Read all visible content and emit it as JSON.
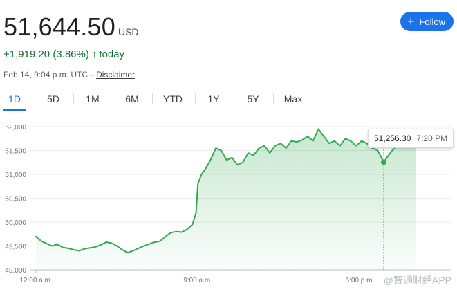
{
  "quote": {
    "price": "51,644.50",
    "currency": "USD",
    "change": "+1,919.20 (3.86%)",
    "change_arrow": "↑",
    "change_period": "today",
    "timestamp": "Feb 14, 9:04 p.m. UTC",
    "separator": "·",
    "disclaimer": "Disclaimer",
    "follow_label": "Follow",
    "follow_icon": "+"
  },
  "colors": {
    "up": "#137333",
    "line": "#34a853",
    "accent": "#1a73e8"
  },
  "tabs": [
    {
      "label": "1D",
      "active": true
    },
    {
      "label": "5D",
      "active": false
    },
    {
      "label": "1M",
      "active": false
    },
    {
      "label": "6M",
      "active": false
    },
    {
      "label": "YTD",
      "active": false
    },
    {
      "label": "1Y",
      "active": false
    },
    {
      "label": "5Y",
      "active": false
    },
    {
      "label": "Max",
      "active": false
    }
  ],
  "tooltip": {
    "value": "51,256.30",
    "time": "7:20 PM"
  },
  "watermark": "@智通财经APP",
  "chart_data": {
    "type": "area",
    "y_ticks": [
      "52,000",
      "51,500",
      "51,000",
      "50,500",
      "50,000",
      "49,500",
      "49,000"
    ],
    "x_ticks": [
      "12:00 a.m.",
      "9:00 a.m.",
      "6:00 p.m."
    ],
    "ylim": [
      49000,
      52000
    ],
    "x_range_hours": [
      0,
      21.1
    ],
    "hover_point": {
      "x_hours": 19.33,
      "y": 51256.3
    },
    "series": [
      {
        "x": [
          0.0,
          0.3,
          0.6,
          0.9,
          1.2,
          1.5,
          1.8,
          2.1,
          2.4,
          2.7,
          3.0,
          3.3,
          3.6,
          3.9,
          4.2,
          4.5,
          4.8,
          5.1,
          5.4,
          5.7,
          6.0,
          6.3,
          6.6,
          6.9,
          7.2,
          7.5,
          7.8,
          8.1,
          8.4,
          8.7,
          8.9,
          9.0,
          9.2,
          9.4,
          9.7,
          10.0,
          10.3,
          10.6,
          10.9,
          11.2,
          11.5,
          11.8,
          12.1,
          12.4,
          12.7,
          13.0,
          13.3,
          13.6,
          13.9,
          14.2,
          14.5,
          14.8,
          15.1,
          15.4,
          15.7,
          16.0,
          16.3,
          16.6,
          16.9,
          17.2,
          17.5,
          17.8,
          18.1,
          18.4,
          18.7,
          19.0,
          19.33,
          19.6,
          19.8,
          20.1,
          20.4,
          20.7,
          21.1
        ],
        "y": [
          49700,
          49600,
          49550,
          49500,
          49530,
          49470,
          49450,
          49420,
          49400,
          49440,
          49460,
          49480,
          49520,
          49580,
          49560,
          49500,
          49420,
          49360,
          49400,
          49450,
          49500,
          49540,
          49580,
          49600,
          49700,
          49780,
          49800,
          49790,
          49850,
          49950,
          50200,
          50800,
          51000,
          51100,
          51300,
          51550,
          51500,
          51300,
          51350,
          51200,
          51250,
          51450,
          51400,
          51550,
          51600,
          51450,
          51600,
          51650,
          51550,
          51700,
          51680,
          51720,
          51800,
          51700,
          51950,
          51800,
          51650,
          51700,
          51600,
          51750,
          51700,
          51600,
          51700,
          51650,
          51550,
          51500,
          51256,
          51400,
          51500,
          51600,
          51650,
          51600,
          51620
        ]
      }
    ]
  }
}
